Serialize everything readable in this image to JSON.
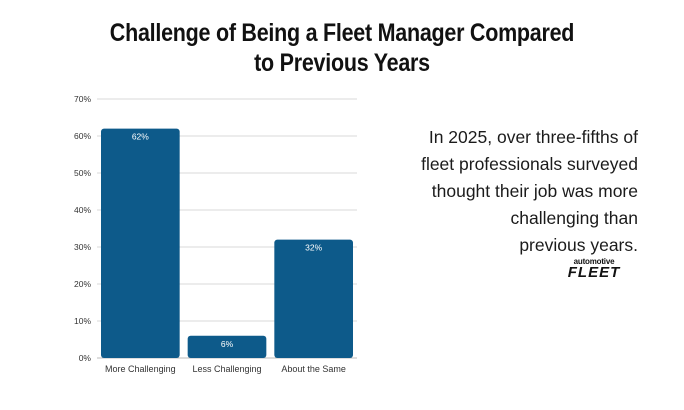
{
  "title_lines": [
    "Challenge of Being a Fleet Manager Compared",
    "to Previous Years"
  ],
  "callout_lines": [
    "In 2025, over three-fifths of",
    "fleet professionals surveyed",
    "thought their job was more",
    "challenging than ",
    "previous years."
  ],
  "logo": {
    "small": "automotive",
    "big": "FLEET"
  },
  "colors": {
    "bar": "#0d5a8a",
    "bar_label": "#ffffff",
    "grid": "#d9d9d9",
    "axis_text": "#333333"
  },
  "chart_data": {
    "type": "bar",
    "categories": [
      "More Challenging",
      "Less Challenging",
      "About the Same"
    ],
    "values": [
      62,
      6,
      32
    ],
    "data_labels": [
      "62%",
      "6%",
      "32%"
    ],
    "ylim": [
      0,
      70
    ],
    "yticks": [
      "0%",
      "10%",
      "20%",
      "30%",
      "40%",
      "50%",
      "60%",
      "70%"
    ],
    "grid": true,
    "xlabel": "",
    "ylabel": ""
  }
}
